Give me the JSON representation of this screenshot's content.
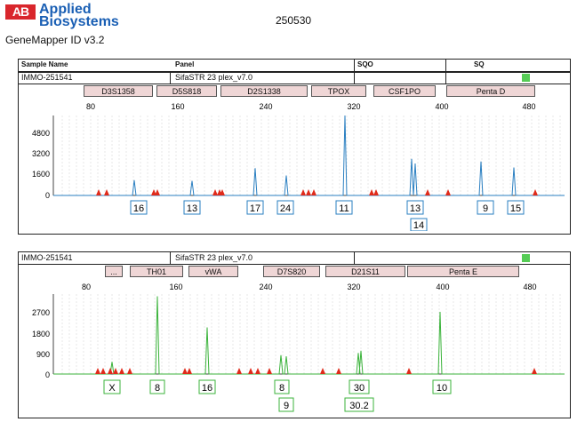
{
  "header": {
    "logo_text": "AB",
    "brand_line1": "Applied",
    "brand_line2": "Biosystems",
    "app_name": "GeneMapper ID v3.2",
    "doc_title": "250530"
  },
  "table_header": {
    "col1": "Sample Name",
    "col2": "Panel",
    "col3": "SQO",
    "col4": "SQ"
  },
  "status_colors": {
    "quality_pass": "#55cc55",
    "marker_bg": "#efd6d6",
    "trace_panel1": "#2a7fc1",
    "trace_panel2": "#3bb33b",
    "off_ladder": "#e02a1a"
  },
  "panels": [
    {
      "sample": "IMMO-251541",
      "panel_name": "SifaSTR 23 plex_v7.0",
      "markers": [
        "D3S1358",
        "D5S818",
        "D2S1338",
        "TPOX",
        "CSF1PO",
        "Penta D"
      ],
      "x_ticks": [
        "80",
        "160",
        "240",
        "320",
        "400",
        "480"
      ],
      "y_ticks": [
        "4800",
        "3200",
        "1600",
        "0"
      ],
      "alleles_row1": [
        "16",
        "13",
        "17",
        "24",
        "11",
        "13",
        "9",
        "15"
      ],
      "alleles_row2": [
        "14"
      ]
    },
    {
      "sample": "IMMO-251541",
      "panel_name": "SifaSTR 23 plex_v7.0",
      "markers": [
        "...",
        "TH01",
        "vWA",
        "D7S820",
        "D21S11",
        "Penta E"
      ],
      "x_ticks": [
        "80",
        "160",
        "240",
        "320",
        "400",
        "480"
      ],
      "y_ticks": [
        "2700",
        "1800",
        "900",
        "0"
      ],
      "alleles_row1": [
        "X",
        "8",
        "16",
        "8",
        "30",
        "10"
      ],
      "alleles_row2": [
        "9",
        "30.2"
      ]
    }
  ],
  "chart_data": [
    {
      "type": "line",
      "x_range": [
        62,
        490
      ],
      "ylim": [
        0,
        6000
      ],
      "peaks": [
        {
          "x": 151,
          "h": 1150
        },
        {
          "x": 216,
          "h": 1100
        },
        {
          "x": 287,
          "h": 2050
        },
        {
          "x": 322,
          "h": 1500
        },
        {
          "x": 388,
          "h": 6000
        },
        {
          "x": 463,
          "h": 2750
        },
        {
          "x": 467,
          "h": 2400
        },
        {
          "x": 541,
          "h": 2550
        },
        {
          "x": 578,
          "h": 2100
        }
      ]
    },
    {
      "type": "line",
      "x_range": [
        62,
        490
      ],
      "ylim": [
        0,
        3600
      ],
      "peaks": [
        {
          "x": 126,
          "h": 550
        },
        {
          "x": 177,
          "h": 3500
        },
        {
          "x": 233,
          "h": 2100
        },
        {
          "x": 316,
          "h": 850
        },
        {
          "x": 322,
          "h": 800
        },
        {
          "x": 403,
          "h": 950
        },
        {
          "x": 406,
          "h": 1050
        },
        {
          "x": 495,
          "h": 2800
        }
      ]
    }
  ]
}
